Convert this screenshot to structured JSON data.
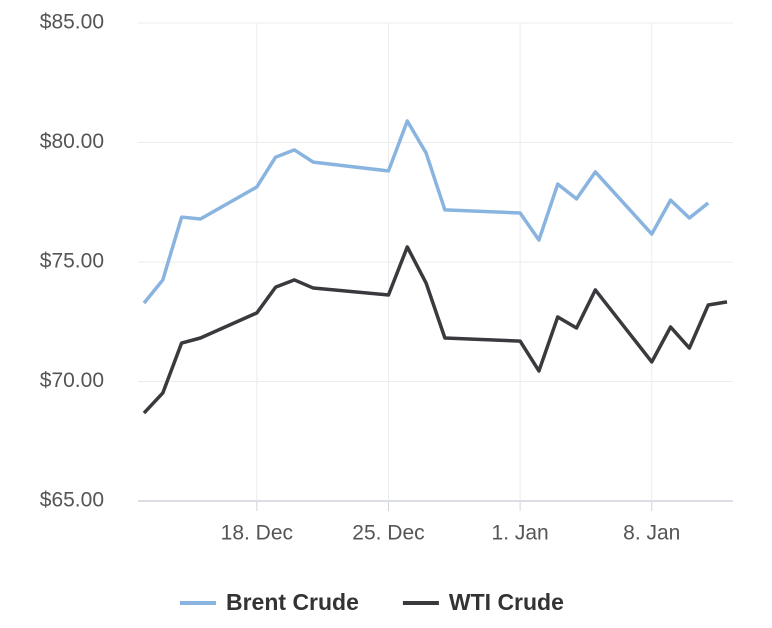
{
  "chart_data": {
    "type": "line",
    "x": [
      "12 Dec",
      "13 Dec",
      "14 Dec",
      "15 Dec",
      "18 Dec",
      "19 Dec",
      "20 Dec",
      "21 Dec",
      "25 Dec",
      "26 Dec",
      "27 Dec",
      "28 Dec",
      "1 Jan",
      "2 Jan",
      "3 Jan",
      "4 Jan",
      "5 Jan",
      "8 Jan",
      "9 Jan",
      "10 Jan",
      "11 Jan",
      "12 Jan"
    ],
    "series": [
      {
        "name": "Brent Crude",
        "color": "#8ab4e0",
        "values": [
          73.28,
          74.25,
          76.88,
          76.8,
          78.14,
          79.39,
          79.69,
          79.18,
          78.81,
          80.9,
          79.56,
          77.18,
          77.05,
          75.92,
          78.26,
          77.64,
          78.77,
          76.17,
          77.59,
          76.84,
          77.47,
          null
        ]
      },
      {
        "name": "WTI Crude",
        "color": "#3a3a3e",
        "values": [
          68.68,
          69.52,
          71.61,
          71.82,
          72.87,
          73.95,
          74.25,
          73.91,
          73.62,
          75.63,
          74.12,
          71.82,
          71.69,
          70.44,
          72.7,
          72.24,
          73.83,
          70.82,
          72.28,
          71.4,
          73.2,
          73.33
        ]
      }
    ],
    "xlim": [
      "12 Dec",
      "12 Jan"
    ],
    "xticks": [
      {
        "value": "18 Dec",
        "label": "18. Dec"
      },
      {
        "value": "25 Dec",
        "label": "25. Dec"
      },
      {
        "value": "1 Jan",
        "label": "1. Jan"
      },
      {
        "value": "8 Jan",
        "label": "8. Jan"
      }
    ],
    "ylim": [
      65,
      85
    ],
    "yticks": [
      {
        "value": 65,
        "label": "$65.00"
      },
      {
        "value": 70,
        "label": "$70.00"
      },
      {
        "value": 75,
        "label": "$75.00"
      },
      {
        "value": 80,
        "label": "$80.00"
      },
      {
        "value": 85,
        "label": "$85.00"
      }
    ],
    "grid": true
  }
}
